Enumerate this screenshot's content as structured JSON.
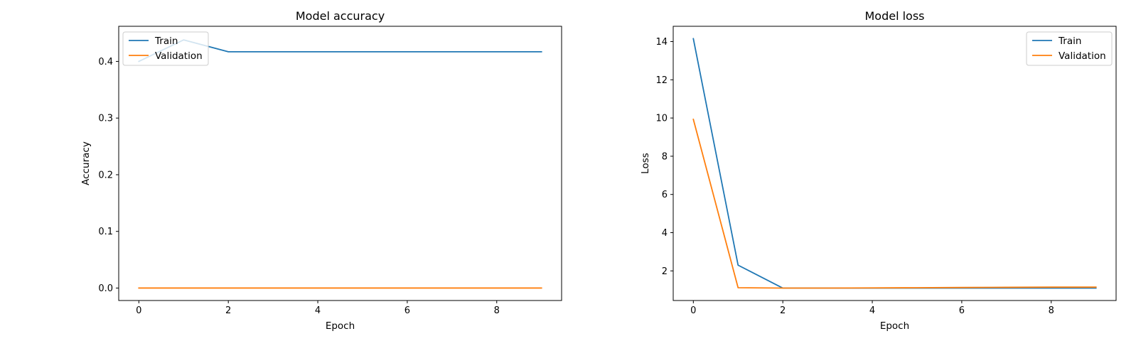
{
  "chart_data": [
    {
      "type": "line",
      "title": "Model accuracy",
      "xlabel": "Epoch",
      "ylabel": "Accuracy",
      "xlim": [
        -0.45,
        9.45
      ],
      "ylim": [
        -0.022,
        0.462
      ],
      "xticks": [
        0,
        2,
        4,
        6,
        8
      ],
      "yticks": [
        0.0,
        0.1,
        0.2,
        0.3,
        0.4
      ],
      "ytick_labels": [
        "0.0",
        "0.1",
        "0.2",
        "0.3",
        "0.4"
      ],
      "legend_loc": "upper left",
      "x": [
        0,
        1,
        2,
        3,
        4,
        5,
        6,
        7,
        8,
        9
      ],
      "series": [
        {
          "name": "Train",
          "color": "#1f77b4",
          "values": [
            0.4,
            0.438,
            0.417,
            0.417,
            0.417,
            0.417,
            0.417,
            0.417,
            0.417,
            0.417
          ]
        },
        {
          "name": "Validation",
          "color": "#ff7f0e",
          "values": [
            0.0,
            0.0,
            0.0,
            0.0,
            0.0,
            0.0,
            0.0,
            0.0,
            0.0,
            0.0
          ]
        }
      ]
    },
    {
      "type": "line",
      "title": "Model loss",
      "xlabel": "Epoch",
      "ylabel": "Loss",
      "xlim": [
        -0.45,
        9.45
      ],
      "ylim": [
        0.45,
        14.8
      ],
      "xticks": [
        0,
        2,
        4,
        6,
        8
      ],
      "yticks": [
        2,
        4,
        6,
        8,
        10,
        12,
        14
      ],
      "ytick_labels": [
        "2",
        "4",
        "6",
        "8",
        "10",
        "12",
        "14"
      ],
      "legend_loc": "upper right",
      "x": [
        0,
        1,
        2,
        3,
        4,
        5,
        6,
        7,
        8,
        9
      ],
      "series": [
        {
          "name": "Train",
          "color": "#1f77b4",
          "values": [
            14.15,
            2.3,
            1.1,
            1.1,
            1.1,
            1.1,
            1.1,
            1.1,
            1.1,
            1.1
          ]
        },
        {
          "name": "Validation",
          "color": "#ff7f0e",
          "values": [
            9.93,
            1.12,
            1.1,
            1.1,
            1.11,
            1.12,
            1.13,
            1.14,
            1.15,
            1.15
          ]
        }
      ]
    }
  ]
}
